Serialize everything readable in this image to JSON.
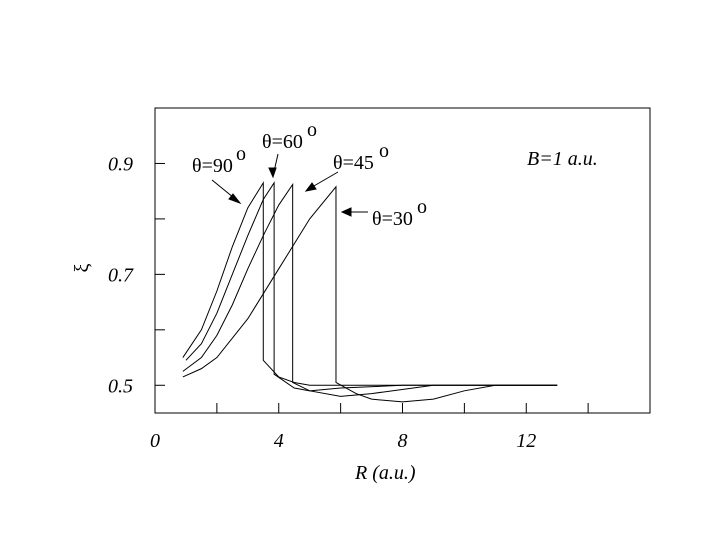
{
  "chart_data": {
    "type": "line",
    "x_label": "R (a.u.)",
    "y_label": "ξ",
    "xlim": [
      0,
      16
    ],
    "xticks": [
      0,
      4,
      8,
      12
    ],
    "xminorticks": [
      2,
      6,
      10,
      14
    ],
    "ylim": [
      0.45,
      1.0
    ],
    "yticks": [
      0.5,
      0.7,
      0.9
    ],
    "yminorticks": [
      0.6,
      0.8
    ],
    "annotations": [
      {
        "text": "θ=90",
        "sup": "o"
      },
      {
        "text": "θ=60",
        "sup": "o"
      },
      {
        "text": "θ=45",
        "sup": "o"
      },
      {
        "text": "θ=30",
        "sup": "o"
      },
      {
        "text": "B=1 a.u."
      }
    ],
    "series": [
      {
        "color": "#000000",
        "x": [
          0.9,
          1.5,
          2,
          2.5,
          3,
          3.5,
          3.5,
          4,
          4.5,
          5,
          6,
          8,
          10,
          13
        ],
        "values": [
          0.55,
          0.6,
          0.67,
          0.75,
          0.82,
          0.865,
          0.545,
          0.515,
          0.505,
          0.5,
          0.5,
          0.5,
          0.5,
          0.5
        ]
      },
      {
        "color": "#000000",
        "x": [
          1,
          1.5,
          2,
          2.5,
          3,
          3.5,
          3.85,
          3.85,
          4.5,
          5,
          6,
          8,
          10,
          13
        ],
        "values": [
          0.545,
          0.575,
          0.63,
          0.7,
          0.77,
          0.835,
          0.865,
          0.52,
          0.495,
          0.49,
          0.495,
          0.5,
          0.5,
          0.5
        ]
      },
      {
        "color": "#000000",
        "x": [
          0.9,
          1.5,
          2,
          2.5,
          3,
          3.5,
          4,
          4.45,
          4.45,
          5,
          6,
          7,
          9,
          11,
          13
        ],
        "values": [
          0.525,
          0.55,
          0.59,
          0.645,
          0.71,
          0.77,
          0.825,
          0.862,
          0.505,
          0.49,
          0.48,
          0.485,
          0.5,
          0.5,
          0.5
        ]
      },
      {
        "color": "#000000",
        "x": [
          0.9,
          1.5,
          2,
          3,
          4,
          5,
          5.85,
          5.85,
          6.5,
          7,
          8,
          9,
          10,
          11,
          13
        ],
        "values": [
          0.515,
          0.53,
          0.55,
          0.62,
          0.71,
          0.8,
          0.858,
          0.505,
          0.485,
          0.475,
          0.47,
          0.475,
          0.49,
          0.5,
          0.5
        ]
      }
    ]
  }
}
